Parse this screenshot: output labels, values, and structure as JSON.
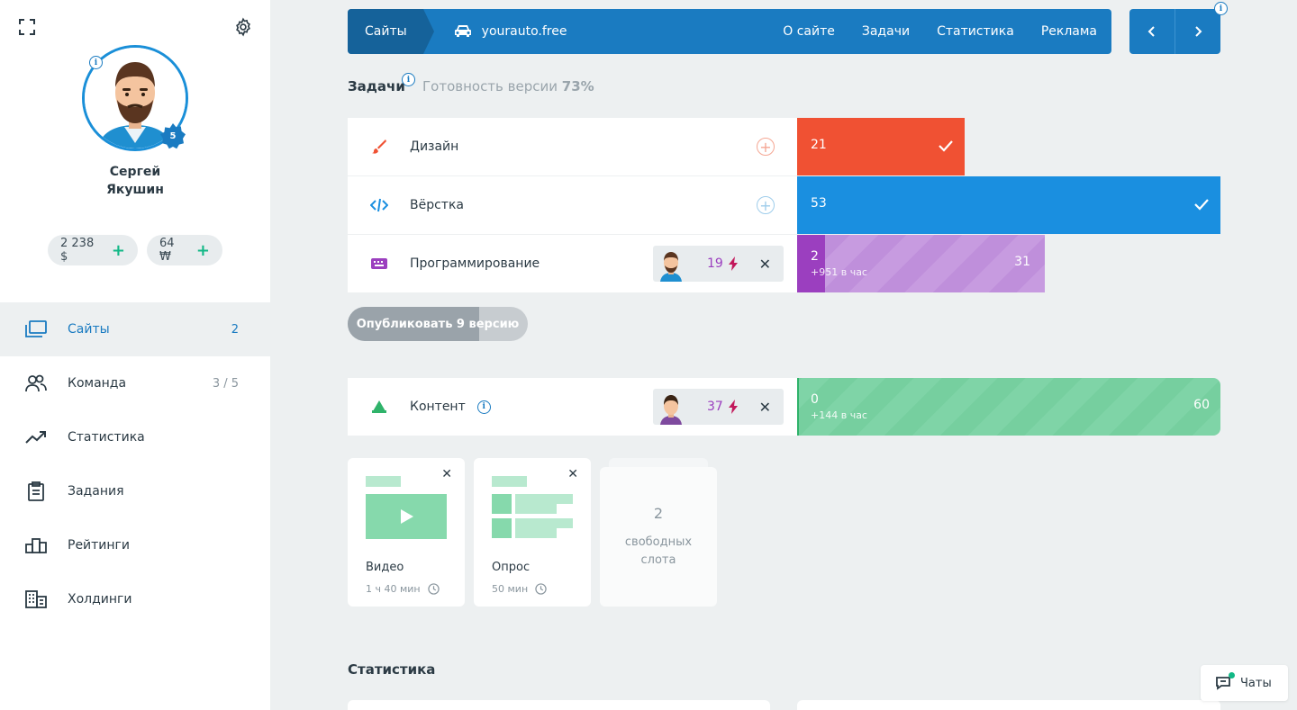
{
  "user": {
    "first_name": "Сергей",
    "last_name": "Якушин",
    "level": "5",
    "balance_money": "2 238 $",
    "balance_coins": "64 ₩"
  },
  "nav": [
    {
      "label": "Сайты",
      "count": "2",
      "icon": "sites-icon"
    },
    {
      "label": "Команда",
      "count": "3 / 5",
      "icon": "team-icon"
    },
    {
      "label": "Статистика",
      "count": "",
      "icon": "trend-icon"
    },
    {
      "label": "Задания",
      "count": "",
      "icon": "clipboard-icon"
    },
    {
      "label": "Рейтинги",
      "count": "",
      "icon": "podium-icon"
    },
    {
      "label": "Холдинги",
      "count": "",
      "icon": "building-icon"
    }
  ],
  "topbar": {
    "crumb": "Сайты",
    "site": "yourauto.free",
    "links": [
      "О сайте",
      "Задачи",
      "Статистика",
      "Реклама"
    ]
  },
  "tasks": {
    "title": "Задачи",
    "readiness_label": "Готовность версии",
    "readiness_value": "73%",
    "rows": [
      {
        "label": "Дизайн",
        "value": "21",
        "progress": 0.396,
        "color": "#f05133",
        "done": true,
        "icon": "brush-icon"
      },
      {
        "label": "Вёрстка",
        "value": "53",
        "progress": 1.0,
        "color": "#1a8fe0",
        "done": true,
        "icon": "code-icon"
      },
      {
        "label": "Программирование",
        "value": "2",
        "sub": "+951 в час",
        "target": "31",
        "worker_value": "19",
        "progress": 0.065,
        "color": "#9b3fbf",
        "icon": "keyboard-icon"
      }
    ],
    "publish_label": "Опубликовать 9 версию",
    "publish_progress": 0.73
  },
  "content": {
    "label": "Контент",
    "worker_value": "37",
    "value": "0",
    "sub": "+144 в час",
    "target": "60"
  },
  "cards": [
    {
      "title": "Видео",
      "time": "1 ч 40 мин"
    },
    {
      "title": "Опрос",
      "time": "50 мин"
    }
  ],
  "slots": {
    "count": "2",
    "label_line1": "свободных",
    "label_line2": "слота"
  },
  "stats_title": "Статистика",
  "chat_label": "Чаты",
  "colors": {
    "accent": "#1a7bc1",
    "design": "#f05133",
    "layout": "#1a8fe0",
    "programming": "#b98ad6",
    "content": "#7fd4a7"
  }
}
